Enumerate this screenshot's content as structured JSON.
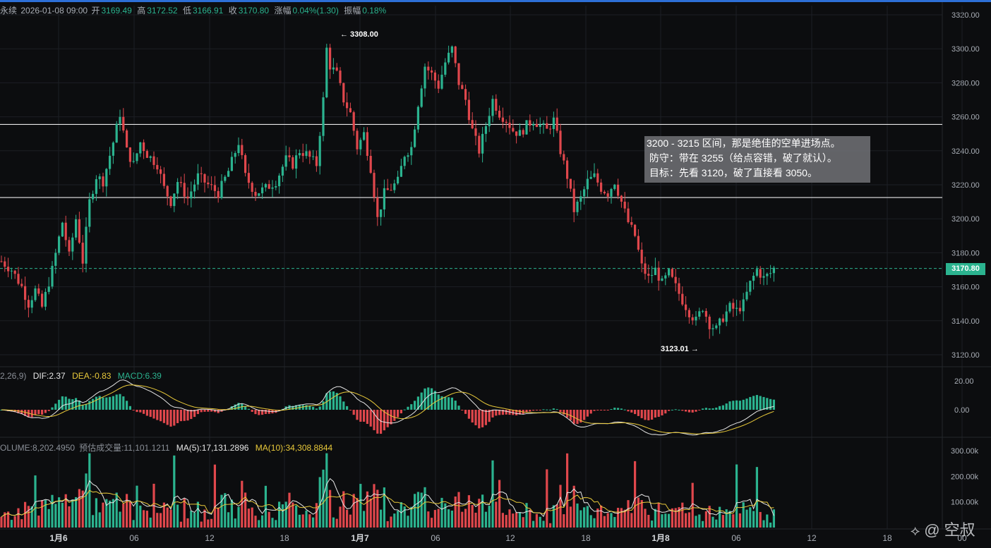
{
  "header": {
    "prefix": "永续",
    "datetime": "2026-01-08 09:00",
    "open_label": "开",
    "open": "3169.49",
    "high_label": "高",
    "high": "3172.52",
    "low_label": "低",
    "low": "3166.91",
    "close_label": "收",
    "close": "3170.80",
    "change_label": "涨幅",
    "change": "0.04%(1.30)",
    "amp_label": "振幅",
    "amp": "0.18%"
  },
  "macd_header": {
    "params": "2,26,9)",
    "dif": "DIF:2.37",
    "dea": "DEA:-0.83",
    "macd": "MACD:6.39"
  },
  "volume_header": {
    "volume": "OLUME:8,202.4950",
    "est_label": "预估成交量:",
    "est": "11,101.1211",
    "ma5": "MA(5):17,131.2896",
    "ma10": "MA(10):34,308.8844"
  },
  "annotation": {
    "line1": "3200 - 3215 区间，那是绝佳的空单进场点。",
    "line2": " 防守：带在 3255（给点容错，破了就认）。",
    "line3": " 目标：先看 3120，破了直接看 3050。"
  },
  "watermark": {
    "icon": "binance-logo-icon",
    "text": "@ 空叔"
  },
  "chart_data": {
    "type": "candlestick",
    "price_axis": {
      "ticks": [
        3120,
        3140,
        3160,
        3180,
        3200,
        3220,
        3240,
        3260,
        3280,
        3300,
        3320
      ],
      "tick_labels": [
        "3120.00",
        "3140.00",
        "3160.00",
        "3180.00",
        "3200.00",
        "3220.00",
        "3240.00",
        "3260.00",
        "3280.00",
        "3300.00",
        "3320.00"
      ],
      "range": [
        3112,
        3326
      ]
    },
    "macd_axis": {
      "tick_labels": [
        "20.00",
        "0.00"
      ],
      "ticks": [
        20,
        0
      ]
    },
    "volume_axis": {
      "tick_labels": [
        "300.00k",
        "200.00k",
        "100.00k"
      ],
      "ticks": [
        300000,
        200000,
        100000
      ]
    },
    "time_axis": {
      "labels": [
        "1月6",
        "06",
        "12",
        "18",
        "1月7",
        "06",
        "12",
        "18",
        "1月8",
        "06",
        "12",
        "18",
        "00"
      ]
    },
    "last_price": "3170.80",
    "last_price_value": 3170.8,
    "high_marker": {
      "label": "← 3308.00",
      "value": 3308.0
    },
    "low_marker": {
      "label": "3123.01 →",
      "value": 3123.01
    },
    "horizontal_lines": [
      3255.5,
      3212.5
    ],
    "price_path": [
      [
        0,
        3175
      ],
      [
        3,
        3170
      ],
      [
        6,
        3160
      ],
      [
        8,
        3150
      ],
      [
        10,
        3158
      ],
      [
        12,
        3148
      ],
      [
        15,
        3170
      ],
      [
        18,
        3198
      ],
      [
        20,
        3178
      ],
      [
        22,
        3200
      ],
      [
        24,
        3175
      ],
      [
        26,
        3210
      ],
      [
        28,
        3225
      ],
      [
        30,
        3222
      ],
      [
        33,
        3245
      ],
      [
        35,
        3262
      ],
      [
        37,
        3240
      ],
      [
        39,
        3232
      ],
      [
        41,
        3245
      ],
      [
        43,
        3238
      ],
      [
        46,
        3232
      ],
      [
        48,
        3218
      ],
      [
        50,
        3210
      ],
      [
        52,
        3222
      ],
      [
        55,
        3212
      ],
      [
        58,
        3225
      ],
      [
        61,
        3220
      ],
      [
        64,
        3215
      ],
      [
        67,
        3228
      ],
      [
        70,
        3245
      ],
      [
        72,
        3225
      ],
      [
        75,
        3215
      ],
      [
        78,
        3218
      ],
      [
        81,
        3222
      ],
      [
        84,
        3235
      ],
      [
        86,
        3232
      ],
      [
        88,
        3240
      ],
      [
        90,
        3238
      ],
      [
        93,
        3232
      ],
      [
        95,
        3270
      ],
      [
        96,
        3300
      ],
      [
        97,
        3290
      ],
      [
        99,
        3285
      ],
      [
        101,
        3270
      ],
      [
        103,
        3262
      ],
      [
        105,
        3242
      ],
      [
        107,
        3250
      ],
      [
        109,
        3230
      ],
      [
        111,
        3200
      ],
      [
        113,
        3215
      ],
      [
        115,
        3218
      ],
      [
        117,
        3222
      ],
      [
        119,
        3238
      ],
      [
        121,
        3242
      ],
      [
        123,
        3268
      ],
      [
        125,
        3290
      ],
      [
        127,
        3285
      ],
      [
        129,
        3278
      ],
      [
        131,
        3292
      ],
      [
        133,
        3300
      ],
      [
        135,
        3280
      ],
      [
        137,
        3270
      ],
      [
        139,
        3252
      ],
      [
        141,
        3240
      ],
      [
        143,
        3255
      ],
      [
        145,
        3270
      ],
      [
        147,
        3262
      ],
      [
        149,
        3258
      ],
      [
        151,
        3252
      ],
      [
        153,
        3250
      ],
      [
        155,
        3255
      ],
      [
        157,
        3258
      ],
      [
        159,
        3255
      ],
      [
        161,
        3252
      ],
      [
        163,
        3258
      ],
      [
        165,
        3240
      ],
      [
        167,
        3225
      ],
      [
        169,
        3205
      ],
      [
        171,
        3212
      ],
      [
        173,
        3222
      ],
      [
        175,
        3225
      ],
      [
        177,
        3218
      ],
      [
        179,
        3215
      ],
      [
        181,
        3222
      ],
      [
        183,
        3210
      ],
      [
        185,
        3198
      ],
      [
        187,
        3190
      ],
      [
        189,
        3172
      ],
      [
        191,
        3165
      ],
      [
        193,
        3170
      ],
      [
        195,
        3162
      ],
      [
        197,
        3168
      ],
      [
        199,
        3160
      ],
      [
        201,
        3152
      ],
      [
        203,
        3145
      ],
      [
        205,
        3140
      ],
      [
        207,
        3148
      ],
      [
        209,
        3138
      ],
      [
        211,
        3135
      ],
      [
        213,
        3142
      ],
      [
        215,
        3148
      ],
      [
        217,
        3146
      ],
      [
        219,
        3150
      ],
      [
        221,
        3162
      ],
      [
        223,
        3170
      ],
      [
        225,
        3165
      ],
      [
        227,
        3168
      ],
      [
        228,
        3170.8
      ]
    ],
    "series": [
      {
        "name": "DIF"
      },
      {
        "name": "DEA"
      },
      {
        "name": "MACD"
      },
      {
        "name": "MA(5)"
      },
      {
        "name": "MA(10)"
      }
    ]
  }
}
